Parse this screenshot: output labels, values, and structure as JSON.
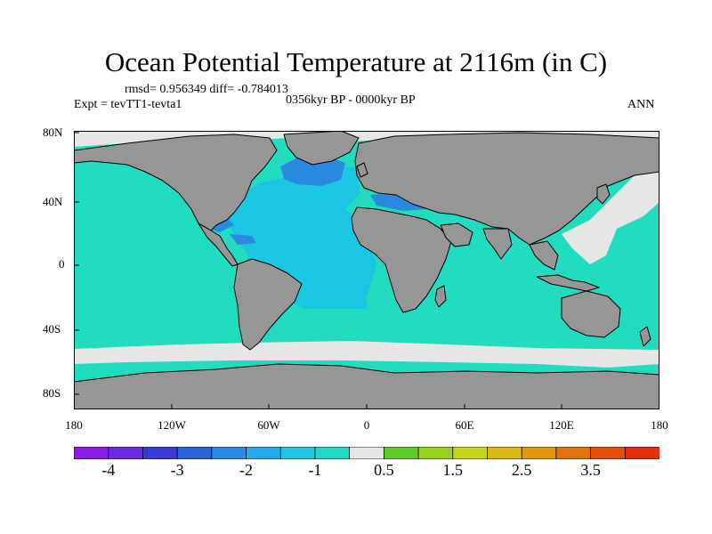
{
  "title": "Ocean Potential Temperature at 2116m (in C)",
  "stats": "rmsd= 0.956349 diff= -0.784013",
  "experiment": "Expt = tevTT1-tevta1",
  "period": "0356kyr BP - 0000kyr BP",
  "season": "ANN",
  "lon_ticks": [
    "180",
    "120W",
    "60W",
    "0",
    "60E",
    "120E",
    "180"
  ],
  "lat_ticks": [
    "80N",
    "40N",
    "0",
    "40S",
    "80S"
  ],
  "colorbar": {
    "labels": [
      "-4",
      "-3",
      "-2",
      "-1",
      "0.5",
      "1.5",
      "2.5",
      "3.5"
    ],
    "colors": [
      "#8a1ee6",
      "#6a2ce0",
      "#3a3ad8",
      "#2a62dc",
      "#2a8ae8",
      "#26aaec",
      "#22c4e0",
      "#20d8c4",
      "#e6e6e6",
      "#5ec82a",
      "#98d21e",
      "#c6d41a",
      "#dcb814",
      "#e09810",
      "#e2720e",
      "#e4500c",
      "#e2300c"
    ]
  },
  "map": {
    "land_color": "#969696",
    "ocean_color": "#22dcc0",
    "atlantic_color": "#1cc6e2",
    "deep_anomaly_color": "#2a8ae0",
    "neutral_color": "#e6e6e6",
    "warm_anomaly_color": "#e2400e"
  }
}
